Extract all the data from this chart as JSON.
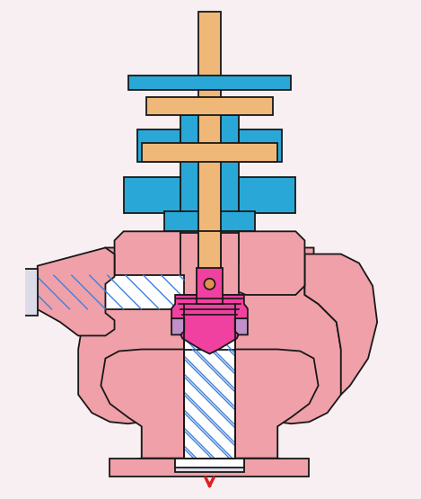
{
  "bg_color": "#f8eff2",
  "pink": "#f0a0a8",
  "pink_dark": "#e87880",
  "magenta": "#f040a0",
  "magenta_dark": "#d03080",
  "blue": "#29a8d8",
  "orange": "#f0b878",
  "orange_dark": "#e09050",
  "white": "#ffffff",
  "gray_flange": "#dcdce8",
  "purple": "#c090c8",
  "red": "#e02020",
  "outline": "#181818",
  "hatch": "#4080d8"
}
